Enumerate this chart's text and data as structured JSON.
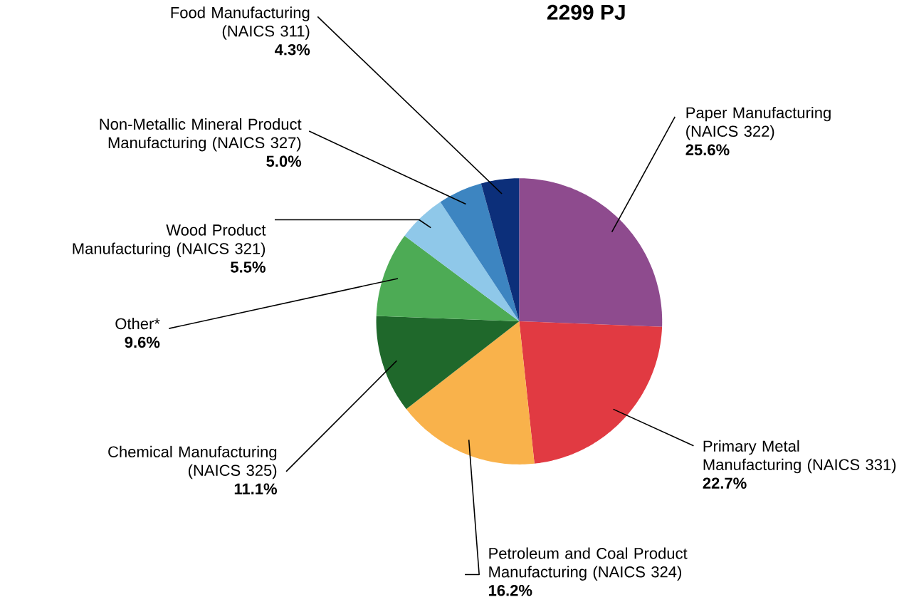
{
  "chart_data": {
    "type": "pie",
    "title": "2299 PJ",
    "categories": [
      "Paper Manufacturing (NAICS 322)",
      "Primary Metal Manufacturing (NAICS 331)",
      "Petroleum and Coal Product Manufacturing (NAICS 324)",
      "Chemical Manufacturing (NAICS 325)",
      "Other*",
      "Wood Product Manufacturing (NAICS 321)",
      "Non-Metallic Mineral Product Manufacturing (NAICS 327)",
      "Food Manufacturing (NAICS 311)"
    ],
    "values": [
      25.6,
      22.7,
      16.2,
      11.1,
      9.6,
      5.5,
      5.0,
      4.3
    ],
    "value_labels": [
      "25.6%",
      "22.7%",
      "16.2%",
      "11.1%",
      "9.6%",
      "5.5%",
      "5.0%",
      "4.3%"
    ],
    "colors": [
      "#8e4b8e",
      "#e13a42",
      "#f9b24b",
      "#1f682b",
      "#4dab55",
      "#8fc8e9",
      "#3d85c1",
      "#0c2f7a"
    ]
  }
}
